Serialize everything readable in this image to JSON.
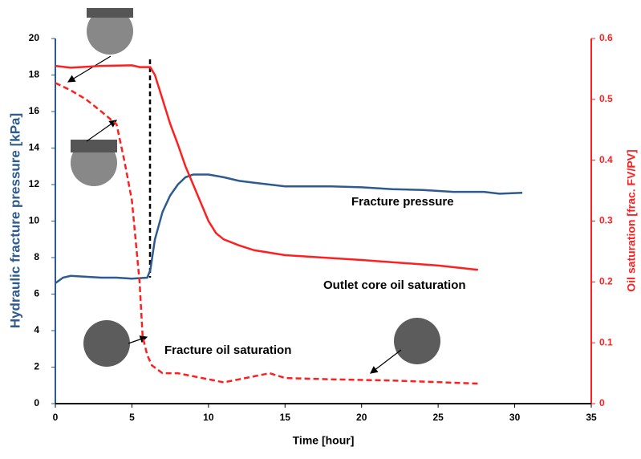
{
  "chart_data": {
    "type": "line",
    "xlabel": "Time [hour]",
    "ylabel": "Hydraulic fracture pressure [kPa]",
    "y2label": "Oil saturation [frac. FV/PV]",
    "xlim": [
      0,
      35
    ],
    "xticks": [
      0,
      5,
      10,
      15,
      20,
      25,
      30,
      35
    ],
    "ylim": [
      0,
      20
    ],
    "yticks": [
      0,
      2,
      4,
      6,
      8,
      10,
      12,
      14,
      16,
      18,
      20
    ],
    "y2lim": [
      0,
      0.6
    ],
    "y2ticks": [
      0,
      0.1,
      0.2,
      0.3,
      0.4,
      0.5,
      0.6
    ],
    "annotations": [
      "Fracture pressure",
      "Outlet core oil saturation",
      "Fracture oil saturation"
    ],
    "series": [
      {
        "name": "Fracture pressure",
        "color": "#2e5b8f",
        "axis": "y",
        "line_style": "solid",
        "x": [
          0,
          0.5,
          1,
          2,
          3,
          4,
          5,
          6,
          6.2,
          6.5,
          7,
          7.5,
          8,
          8.5,
          9,
          10,
          11,
          12,
          13,
          14,
          15,
          16,
          18,
          20,
          22,
          24,
          26,
          28,
          29,
          30.5
        ],
        "values": [
          6.6,
          6.9,
          7.0,
          6.95,
          6.9,
          6.9,
          6.85,
          6.9,
          7.3,
          9.0,
          10.5,
          11.4,
          12.0,
          12.4,
          12.55,
          12.55,
          12.4,
          12.2,
          12.1,
          12.0,
          11.9,
          11.9,
          11.9,
          11.85,
          11.75,
          11.7,
          11.6,
          11.6,
          11.5,
          11.55
        ]
      },
      {
        "name": "Outlet core oil saturation",
        "color": "#ff1f1f",
        "axis": "y2",
        "line_style": "solid",
        "x": [
          0,
          1,
          3,
          5,
          5.5,
          6.2,
          6.5,
          7,
          7.5,
          8,
          8.5,
          9,
          9.5,
          10,
          10.5,
          11,
          12,
          13,
          14,
          15,
          20,
          25,
          27.6
        ],
        "values": [
          0.555,
          0.552,
          0.555,
          0.556,
          0.553,
          0.553,
          0.54,
          0.5,
          0.46,
          0.426,
          0.39,
          0.36,
          0.33,
          0.3,
          0.28,
          0.27,
          0.26,
          0.252,
          0.248,
          0.244,
          0.236,
          0.227,
          0.22
        ]
      },
      {
        "name": "Fracture oil saturation",
        "color": "#ff1f1f",
        "axis": "y2",
        "line_style": "dashed",
        "x": [
          0,
          1,
          2,
          3,
          4,
          4.5,
          5,
          5.5,
          5.7,
          6,
          6.3,
          7,
          8,
          9,
          10,
          11,
          12,
          13,
          14,
          15,
          18,
          22,
          27.6
        ],
        "values": [
          0.527,
          0.515,
          0.5,
          0.48,
          0.459,
          0.4,
          0.334,
          0.2,
          0.11,
          0.08,
          0.063,
          0.05,
          0.05,
          0.045,
          0.04,
          0.035,
          0.04,
          0.045,
          0.05,
          0.042,
          0.04,
          0.038,
          0.033
        ]
      }
    ]
  }
}
